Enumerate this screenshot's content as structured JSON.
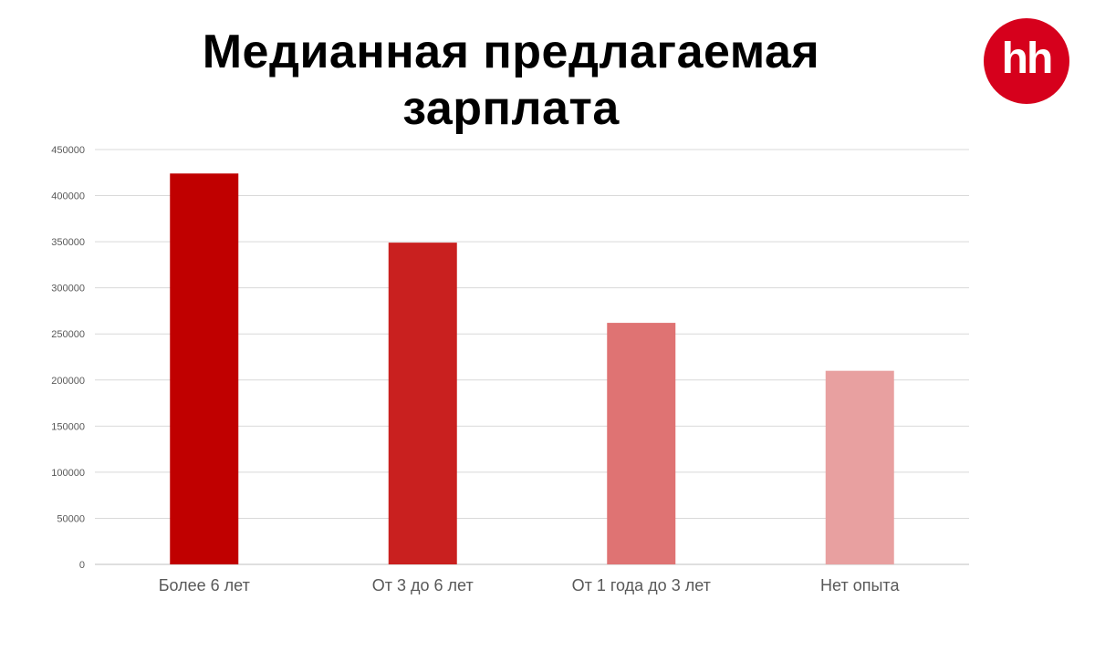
{
  "title": "Медианная предлагаемая зарплата",
  "logo": {
    "text": "hh",
    "color": "#d6001c"
  },
  "chart_data": {
    "type": "bar",
    "title": "Медианная предлагаемая зарплата",
    "xlabel": "",
    "ylabel": "",
    "categories": [
      "Более 6 лет",
      "От 3 до 6 лет",
      "От 1 года до 3 лет",
      "Нет опыта"
    ],
    "values": [
      424000,
      349000,
      262000,
      210000
    ],
    "colors": [
      "#c00000",
      "#c9201f",
      "#df7373",
      "#e8a0a0"
    ],
    "ylim": [
      0,
      450000
    ],
    "yticks": [
      0,
      50000,
      100000,
      150000,
      200000,
      250000,
      300000,
      350000,
      400000,
      450000
    ],
    "grid": true,
    "legend": "none"
  }
}
